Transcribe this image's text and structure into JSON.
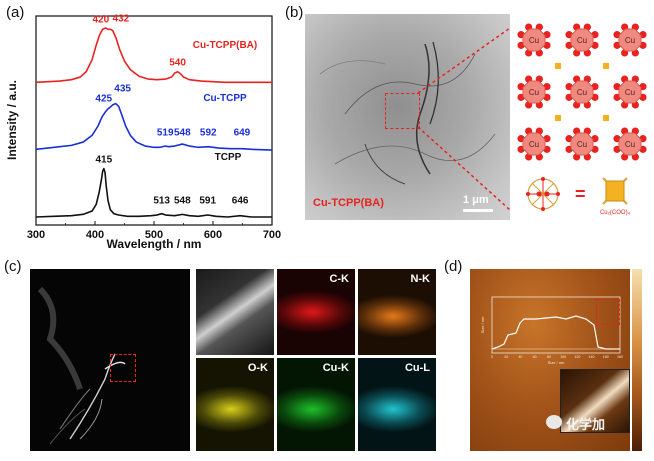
{
  "panels": {
    "a": "(a)",
    "b": "(b)",
    "c": "(c)",
    "d": "(d)"
  },
  "chart_data": {
    "type": "line",
    "title": "",
    "xlabel": "Wavelength / nm",
    "ylabel": "Intensity / a.u.",
    "xlim": [
      300,
      700
    ],
    "xticks": [
      "300",
      "400",
      "500",
      "600",
      "700"
    ],
    "series": [
      {
        "name": "Cu-TCPP(BA)",
        "color": "#e8231f",
        "offset": 2.0,
        "x": [
          300,
          320,
          340,
          360,
          375,
          385,
          395,
          402,
          408,
          413,
          418,
          422,
          426,
          430,
          436,
          442,
          450,
          460,
          475,
          490,
          505,
          520,
          530,
          535,
          540,
          545,
          550,
          560,
          580,
          600,
          620,
          640,
          660,
          680,
          700
        ],
        "y": [
          0.06,
          0.07,
          0.08,
          0.1,
          0.14,
          0.22,
          0.4,
          0.62,
          0.78,
          0.86,
          0.88,
          0.86,
          0.86,
          0.84,
          0.72,
          0.55,
          0.38,
          0.25,
          0.15,
          0.11,
          0.1,
          0.11,
          0.14,
          0.2,
          0.22,
          0.19,
          0.14,
          0.1,
          0.08,
          0.07,
          0.06,
          0.06,
          0.06,
          0.06,
          0.06
        ],
        "peak_labels": [
          {
            "x": 420,
            "text": "420"
          },
          {
            "x": 432,
            "text": "432"
          },
          {
            "x": 540,
            "text": "540"
          }
        ]
      },
      {
        "name": "Cu-TCPP",
        "color": "#1a2fd6",
        "offset": 1.0,
        "x": [
          300,
          320,
          340,
          360,
          380,
          395,
          405,
          412,
          418,
          422,
          425,
          430,
          435,
          440,
          445,
          452,
          460,
          470,
          485,
          500,
          510,
          519,
          525,
          535,
          548,
          560,
          575,
          592,
          610,
          630,
          649,
          665,
          700
        ],
        "y": [
          0.05,
          0.07,
          0.09,
          0.11,
          0.16,
          0.26,
          0.4,
          0.54,
          0.62,
          0.66,
          0.68,
          0.72,
          0.74,
          0.7,
          0.58,
          0.4,
          0.26,
          0.16,
          0.1,
          0.08,
          0.08,
          0.1,
          0.09,
          0.1,
          0.13,
          0.1,
          0.08,
          0.09,
          0.07,
          0.06,
          0.06,
          0.05,
          0.04
        ],
        "peak_labels": [
          {
            "x": 425,
            "text": "425"
          },
          {
            "x": 435,
            "text": "435"
          },
          {
            "x": 519,
            "text": "519"
          },
          {
            "x": 548,
            "text": "548"
          },
          {
            "x": 592,
            "text": "592"
          },
          {
            "x": 649,
            "text": "649"
          }
        ]
      },
      {
        "name": "TCPP",
        "color": "#111111",
        "offset": 0.0,
        "x": [
          300,
          330,
          360,
          380,
          395,
          402,
          407,
          411,
          413,
          415,
          417,
          419,
          422,
          426,
          432,
          440,
          455,
          475,
          495,
          505,
          513,
          520,
          535,
          548,
          560,
          575,
          591,
          605,
          625,
          646,
          665,
          700
        ],
        "y": [
          0.03,
          0.04,
          0.05,
          0.07,
          0.12,
          0.22,
          0.4,
          0.6,
          0.72,
          0.76,
          0.7,
          0.5,
          0.28,
          0.14,
          0.08,
          0.06,
          0.04,
          0.04,
          0.05,
          0.06,
          0.08,
          0.06,
          0.05,
          0.07,
          0.05,
          0.04,
          0.06,
          0.04,
          0.03,
          0.05,
          0.03,
          0.03
        ],
        "peak_labels": [
          {
            "x": 415,
            "text": "415"
          },
          {
            "x": 513,
            "text": "513"
          },
          {
            "x": 548,
            "text": "548"
          },
          {
            "x": 591,
            "text": "591"
          },
          {
            "x": 646,
            "text": "646"
          }
        ]
      }
    ]
  },
  "panel_b": {
    "sample_label": "Cu-TCPP(BA)",
    "scale_bar": "1 μm",
    "node_label": "Cu",
    "paddlewheel_label": "Cu₂(COO)₄",
    "equals": "="
  },
  "panel_c": {
    "maps": [
      {
        "label": "C-K",
        "color": "#e01818"
      },
      {
        "label": "N-K",
        "color": "#e57a1a"
      },
      {
        "label": "O-K",
        "color": "#d9cf1a"
      },
      {
        "label": "Cu-K",
        "color": "#1fc02a"
      },
      {
        "label": "Cu-L",
        "color": "#22c4d0"
      }
    ]
  },
  "panel_d": {
    "inset_xlabel": "Size / nm",
    "inset_ylabel": "Size / nm",
    "inset_xticks": [
      "0",
      "20",
      "40",
      "60",
      "80",
      "100",
      "120",
      "140",
      "160",
      "180"
    ],
    "watermark": "化学加"
  }
}
